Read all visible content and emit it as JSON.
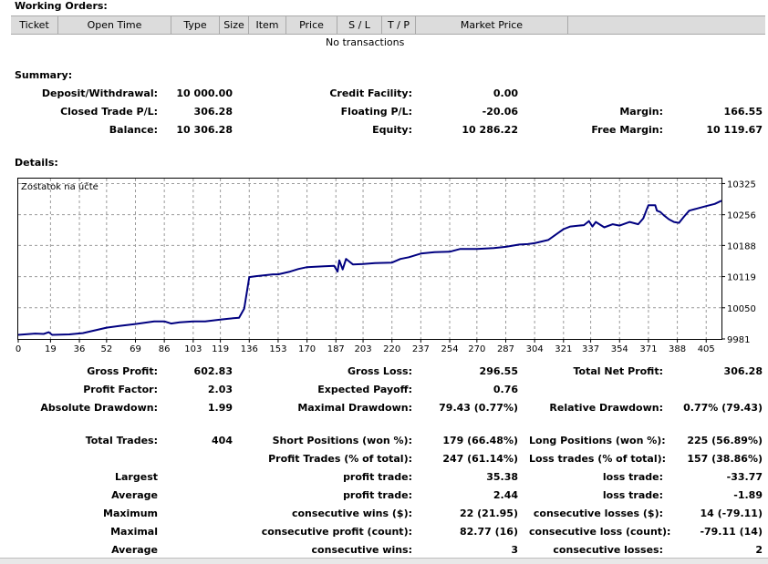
{
  "working_orders": {
    "title": "Working Orders:",
    "columns": [
      "Ticket",
      "Open Time",
      "Type",
      "Size",
      "Item",
      "Price",
      "S / L",
      "T / P",
      "Market Price"
    ],
    "empty_text": "No transactions"
  },
  "summary": {
    "title": "Summary:",
    "deposit_label": "Deposit/Withdrawal:",
    "deposit_value": "10 000.00",
    "credit_label": "Credit Facility:",
    "credit_value": "0.00",
    "closed_pl_label": "Closed Trade P/L:",
    "closed_pl_value": "306.28",
    "floating_pl_label": "Floating P/L:",
    "floating_pl_value": "-20.06",
    "margin_label": "Margin:",
    "margin_value": "166.55",
    "balance_label": "Balance:",
    "balance_value": "10 306.28",
    "equity_label": "Equity:",
    "equity_value": "10 286.22",
    "free_margin_label": "Free Margin:",
    "free_margin_value": "10 119.67"
  },
  "details": {
    "title": "Details:"
  },
  "chart_data": {
    "type": "line",
    "title": "Zostatok na účte",
    "x_ticks": [
      "0",
      "19",
      "36",
      "52",
      "69",
      "86",
      "103",
      "119",
      "136",
      "153",
      "170",
      "187",
      "203",
      "220",
      "237",
      "254",
      "270",
      "287",
      "304",
      "321",
      "337",
      "354",
      "371",
      "388",
      "405"
    ],
    "y_ticks": [
      "10325",
      "10256",
      "10188",
      "10119",
      "10050",
      "9981"
    ],
    "xlim": [
      0,
      414
    ],
    "ylim": [
      9981,
      10336
    ],
    "grid": true,
    "series": [
      {
        "color": "#000080",
        "x": [
          0,
          10,
          15,
          18,
          20,
          30,
          35,
          38,
          52,
          60,
          69,
          80,
          86,
          90,
          95,
          103,
          110,
          119,
          124,
          130,
          133,
          136,
          140,
          150,
          153,
          160,
          165,
          170,
          180,
          186,
          188,
          189,
          191,
          193,
          197,
          203,
          210,
          220,
          225,
          230,
          237,
          245,
          254,
          260,
          270,
          280,
          287,
          295,
          300,
          304,
          312,
          321,
          325,
          330,
          333,
          336,
          338,
          340,
          345,
          350,
          354,
          360,
          365,
          368,
          370,
          371,
          375,
          376,
          378,
          380,
          383,
          386,
          389,
          392,
          395,
          400,
          405,
          410,
          414
        ],
        "y": [
          9990,
          9993,
          9992,
          9996,
          9990,
          9991,
          9993,
          9994,
          10006,
          10010,
          10014,
          10020,
          10020,
          10015,
          10018,
          10020,
          10020,
          10024,
          10026,
          10028,
          10048,
          10118,
          10120,
          10124,
          10124,
          10130,
          10136,
          10140,
          10142,
          10143,
          10130,
          10155,
          10135,
          10158,
          10146,
          10147,
          10149,
          10150,
          10158,
          10162,
          10170,
          10173,
          10174,
          10180,
          10180,
          10182,
          10185,
          10190,
          10191,
          10193,
          10200,
          10224,
          10230,
          10232,
          10233,
          10242,
          10230,
          10240,
          10228,
          10235,
          10232,
          10240,
          10235,
          10248,
          10268,
          10277,
          10277,
          10265,
          10262,
          10255,
          10246,
          10240,
          10238,
          10252,
          10265,
          10270,
          10275,
          10280,
          10287
        ]
      }
    ]
  },
  "stats": {
    "gross_profit_label": "Gross Profit:",
    "gross_profit_value": "602.83",
    "gross_loss_label": "Gross Loss:",
    "gross_loss_value": "296.55",
    "total_net_profit_label": "Total Net Profit:",
    "total_net_profit_value": "306.28",
    "profit_factor_label": "Profit Factor:",
    "profit_factor_value": "2.03",
    "expected_payoff_label": "Expected Payoff:",
    "expected_payoff_value": "0.76",
    "absolute_drawdown_label": "Absolute Drawdown:",
    "absolute_drawdown_value": "1.99",
    "maximal_drawdown_label": "Maximal Drawdown:",
    "maximal_drawdown_value": "79.43 (0.77%)",
    "relative_drawdown_label": "Relative Drawdown:",
    "relative_drawdown_value": "0.77% (79.43)",
    "total_trades_label": "Total Trades:",
    "total_trades_value": "404",
    "short_positions_label": "Short Positions (won %):",
    "short_positions_value": "179 (66.48%)",
    "long_positions_label": "Long Positions (won %):",
    "long_positions_value": "225 (56.89%)",
    "profit_trades_label": "Profit Trades (% of total):",
    "profit_trades_value": "247 (61.14%)",
    "loss_trades_label": "Loss trades (% of total):",
    "loss_trades_value": "157 (38.86%)",
    "rows": [
      {
        "group": "Largest",
        "p_label": "profit trade:",
        "p_value": "35.38",
        "l_label": "loss trade:",
        "l_value": "-33.77"
      },
      {
        "group": "Average",
        "p_label": "profit trade:",
        "p_value": "2.44",
        "l_label": "loss trade:",
        "l_value": "-1.89"
      },
      {
        "group": "Maximum",
        "p_label": "consecutive wins ($):",
        "p_value": "22 (21.95)",
        "l_label": "consecutive losses ($):",
        "l_value": "14 (-79.11)"
      },
      {
        "group": "Maximal",
        "p_label": "consecutive profit (count):",
        "p_value": "82.77 (16)",
        "l_label": "consecutive loss (count):",
        "l_value": "-79.11 (14)"
      },
      {
        "group": "Average",
        "p_label": "consecutive wins:",
        "p_value": "3",
        "l_label": "consecutive losses:",
        "l_value": "2"
      }
    ]
  }
}
